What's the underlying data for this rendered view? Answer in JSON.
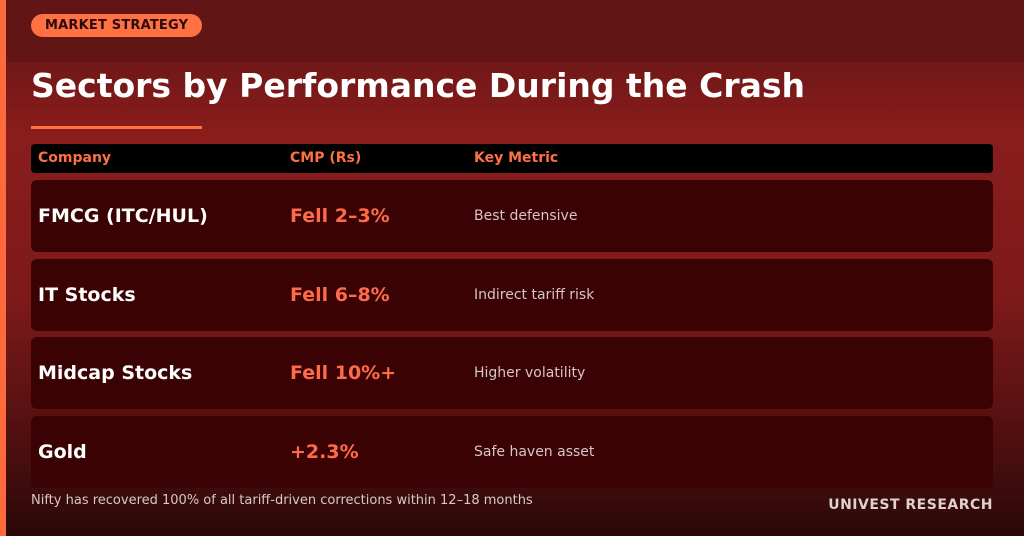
{
  "header": {
    "badge": "MARKET STRATEGY",
    "title": "Sectors by Performance During the Crash"
  },
  "table": {
    "columns": [
      "Company",
      "CMP (Rs)",
      "Key Metric"
    ],
    "rows": [
      {
        "company": "FMCG (ITC/HUL)",
        "cmp": "Fell 2–3%",
        "metric": "Best defensive"
      },
      {
        "company": "IT Stocks",
        "cmp": "Fell 6–8%",
        "metric": "Indirect tariff risk"
      },
      {
        "company": "Midcap Stocks",
        "cmp": "Fell 10%+",
        "metric": "Higher volatility"
      },
      {
        "company": "Gold",
        "cmp": "+2.3%",
        "metric": "Safe haven asset"
      }
    ]
  },
  "footer": {
    "note": "Nifty has recovered 100% of all tariff-driven corrections within 12–18 months",
    "brand": "UNIVEST RESEARCH"
  },
  "colors": {
    "accent": "#ff7043",
    "row_bg": "#3a0202",
    "header_bg": "#000000"
  }
}
